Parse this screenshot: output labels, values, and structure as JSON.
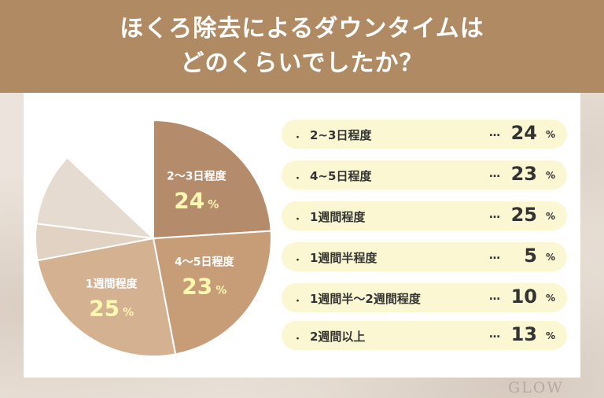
{
  "header": {
    "title_line1": "ほくろ除去によるダウンタイムは",
    "title_line2": "どのくらいでしたか？"
  },
  "chart_data": {
    "type": "pie",
    "title": "ほくろ除去によるダウンタイムはどのくらいでしたか？",
    "start_angle_deg": 0,
    "direction": "clockwise",
    "slices": [
      {
        "label": "2～3日程度",
        "value": 24,
        "color": "#b48c6b",
        "slice_label": "2～3日程度",
        "show_value": true
      },
      {
        "label": "4～5日程度",
        "value": 23,
        "color": "#c79d78",
        "slice_label": "4～5日程度",
        "show_value": true
      },
      {
        "label": "1週間程度",
        "value": 25,
        "color": "#d4b291",
        "slice_label": "1週間程度",
        "show_value": true
      },
      {
        "label": "1週間半程度",
        "value": 5,
        "color": "#e2d2c4",
        "slice_label": "",
        "show_value": false
      },
      {
        "label": "1週間半～2週間程度",
        "value": 10,
        "color": "#e6dbd1",
        "slice_label": "",
        "show_value": false
      },
      {
        "label": "2週間以上",
        "value": 13,
        "color": "#ffffff",
        "slice_label": "",
        "show_value": false
      }
    ],
    "unit": "%",
    "legend": [
      {
        "bullet": "・",
        "label": "2~3日程度",
        "dots": "…",
        "value": "24",
        "unit": "%"
      },
      {
        "bullet": "・",
        "label": "4~5日程度",
        "dots": "…",
        "value": "23",
        "unit": "%"
      },
      {
        "bullet": "・",
        "label": "1週間程度",
        "dots": "…",
        "value": "25",
        "unit": "%"
      },
      {
        "bullet": "・",
        "label": "1週間半程度",
        "dots": "…",
        "value": "5",
        "unit": "%"
      },
      {
        "bullet": "・",
        "label": "1週間半〜2週間程度",
        "dots": "…",
        "value": "10",
        "unit": "%"
      },
      {
        "bullet": "・",
        "label": "2週間以上",
        "dots": "…",
        "value": "13",
        "unit": "%"
      }
    ],
    "legend_placement": "right"
  },
  "brand": {
    "logo_text": "GLOW"
  }
}
